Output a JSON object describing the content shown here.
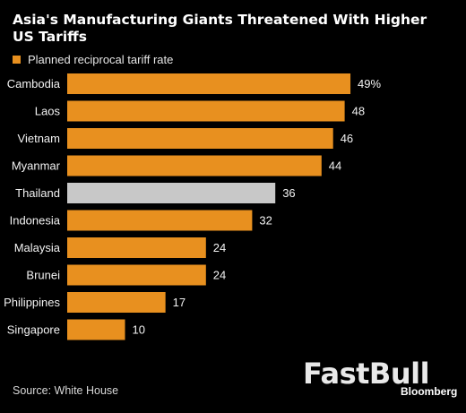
{
  "title": "Asia's Manufacturing Giants Threatened With Higher US Tariffs",
  "legend": {
    "label": "Planned reciprocal tariff rate",
    "color": "#e8901f"
  },
  "source": "Source: White House",
  "watermark": "FastBull",
  "brand": "Bloomberg",
  "colors": {
    "background": "#000000",
    "bar": "#e8901f",
    "highlight": "#c8c8c8"
  },
  "chart_data": {
    "type": "bar",
    "orientation": "horizontal",
    "categories": [
      "Cambodia",
      "Laos",
      "Vietnam",
      "Myanmar",
      "Thailand",
      "Indonesia",
      "Malaysia",
      "Brunei",
      "Philippines",
      "Singapore"
    ],
    "values": [
      49,
      48,
      46,
      44,
      36,
      32,
      24,
      24,
      17,
      10
    ],
    "value_labels": [
      "49%",
      "48",
      "46",
      "44",
      "36",
      "32",
      "24",
      "24",
      "17",
      "10"
    ],
    "highlight": "Thailand",
    "xlim": [
      0,
      50
    ],
    "series": [
      {
        "name": "Planned reciprocal tariff rate",
        "values": [
          49,
          48,
          46,
          44,
          36,
          32,
          24,
          24,
          17,
          10
        ]
      }
    ]
  }
}
